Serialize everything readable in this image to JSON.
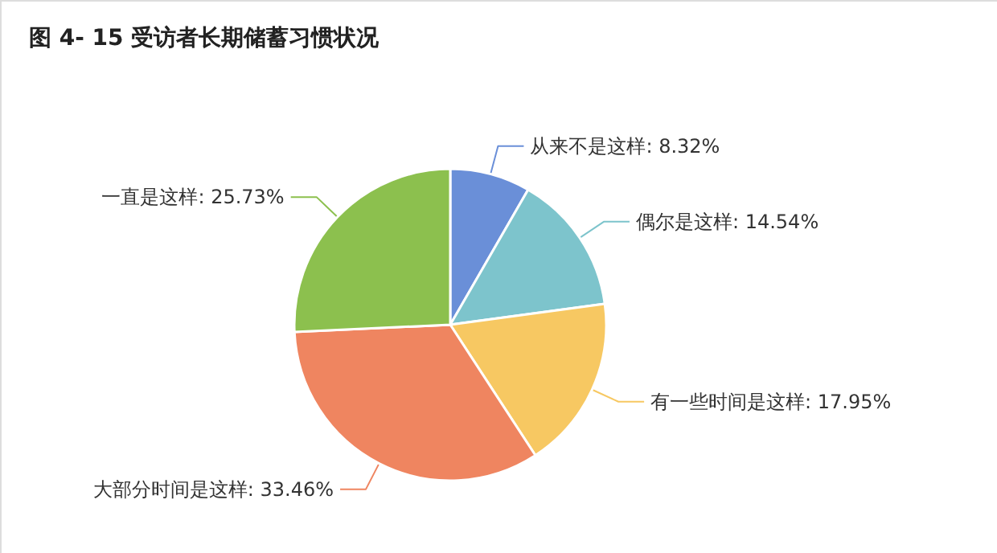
{
  "chart_data": {
    "type": "pie",
    "title": "图 4- 15 受访者长期储蓄习惯状况",
    "categories": [
      "从来不是这样",
      "偶尔是这样",
      "有一些时间是这样",
      "大部分时间是这样",
      "一直是这样"
    ],
    "values": [
      8.32,
      14.54,
      17.95,
      33.46,
      25.73
    ],
    "value_labels": [
      "8.32%",
      "14.54%",
      "17.95%",
      "33.46%",
      "25.73%"
    ],
    "colors": [
      "#6a8fd8",
      "#7dc4cc",
      "#f7c862",
      "#ef8560",
      "#8cc04e"
    ]
  }
}
